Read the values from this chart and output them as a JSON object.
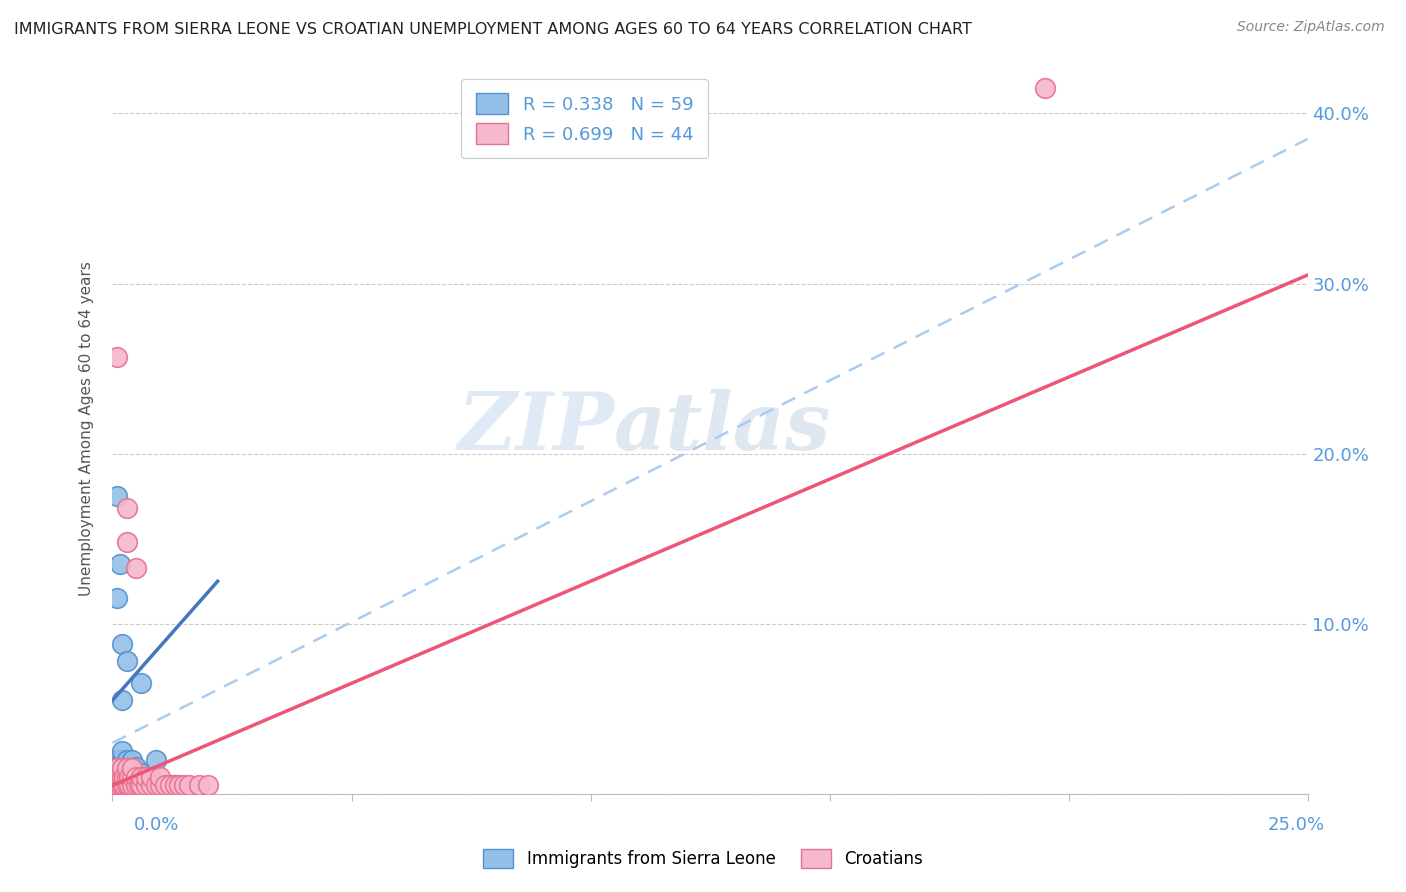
{
  "title": "IMMIGRANTS FROM SIERRA LEONE VS CROATIAN UNEMPLOYMENT AMONG AGES 60 TO 64 YEARS CORRELATION CHART",
  "source": "Source: ZipAtlas.com",
  "ylabel": "Unemployment Among Ages 60 to 64 years",
  "watermark_zip": "ZIP",
  "watermark_atlas": "atlas",
  "blue_color": "#92c0e8",
  "blue_edge_color": "#5590cc",
  "pink_color": "#f5b8cc",
  "pink_edge_color": "#e87090",
  "blue_line_color": "#4477bb",
  "pink_line_color": "#ee5577",
  "dashed_line_color": "#aaccee",
  "title_color": "#222222",
  "source_color": "#888888",
  "axis_label_color": "#5599dd",
  "legend_blue_label": "R = 0.338   N = 59",
  "legend_pink_label": "R = 0.699   N = 44",
  "bottom_legend_blue": "Immigrants from Sierra Leone",
  "bottom_legend_pink": "Croatians",
  "xlim": [
    0.0,
    0.25
  ],
  "ylim": [
    0.0,
    0.43
  ],
  "xtick_positions": [
    0.0,
    0.05,
    0.1,
    0.15,
    0.2,
    0.25
  ],
  "ytick_positions": [
    0.0,
    0.1,
    0.2,
    0.3,
    0.4
  ],
  "ytick_labels": [
    "",
    "10.0%",
    "20.0%",
    "30.0%",
    "40.0%"
  ],
  "blue_line_x": [
    0.0,
    0.022
  ],
  "blue_line_y": [
    0.055,
    0.125
  ],
  "pink_line_x": [
    0.0,
    0.25
  ],
  "pink_line_y": [
    0.005,
    0.305
  ],
  "dashed_line_x": [
    0.0,
    0.25
  ],
  "dashed_line_y": [
    0.03,
    0.385
  ],
  "blue_scatter": [
    [
      0.0005,
      0.005
    ],
    [
      0.001,
      0.007
    ],
    [
      0.001,
      0.01
    ],
    [
      0.001,
      0.013
    ],
    [
      0.001,
      0.016
    ],
    [
      0.001,
      0.02
    ],
    [
      0.0015,
      0.005
    ],
    [
      0.0015,
      0.008
    ],
    [
      0.0015,
      0.012
    ],
    [
      0.002,
      0.005
    ],
    [
      0.002,
      0.008
    ],
    [
      0.002,
      0.012
    ],
    [
      0.002,
      0.016
    ],
    [
      0.002,
      0.02
    ],
    [
      0.002,
      0.025
    ],
    [
      0.002,
      0.055
    ],
    [
      0.0025,
      0.005
    ],
    [
      0.0025,
      0.008
    ],
    [
      0.0025,
      0.012
    ],
    [
      0.0025,
      0.016
    ],
    [
      0.003,
      0.005
    ],
    [
      0.003,
      0.008
    ],
    [
      0.003,
      0.012
    ],
    [
      0.003,
      0.016
    ],
    [
      0.003,
      0.02
    ],
    [
      0.0035,
      0.005
    ],
    [
      0.0035,
      0.008
    ],
    [
      0.0035,
      0.012
    ],
    [
      0.004,
      0.005
    ],
    [
      0.004,
      0.008
    ],
    [
      0.004,
      0.012
    ],
    [
      0.004,
      0.016
    ],
    [
      0.004,
      0.02
    ],
    [
      0.0045,
      0.005
    ],
    [
      0.0045,
      0.008
    ],
    [
      0.005,
      0.005
    ],
    [
      0.005,
      0.008
    ],
    [
      0.005,
      0.012
    ],
    [
      0.005,
      0.016
    ],
    [
      0.0055,
      0.005
    ],
    [
      0.006,
      0.005
    ],
    [
      0.006,
      0.008
    ],
    [
      0.006,
      0.012
    ],
    [
      0.007,
      0.005
    ],
    [
      0.007,
      0.008
    ],
    [
      0.008,
      0.005
    ],
    [
      0.008,
      0.008
    ],
    [
      0.009,
      0.005
    ],
    [
      0.01,
      0.005
    ],
    [
      0.011,
      0.005
    ],
    [
      0.012,
      0.005
    ],
    [
      0.013,
      0.005
    ],
    [
      0.001,
      0.175
    ],
    [
      0.0015,
      0.135
    ],
    [
      0.001,
      0.115
    ],
    [
      0.002,
      0.088
    ],
    [
      0.003,
      0.078
    ],
    [
      0.006,
      0.065
    ],
    [
      0.009,
      0.02
    ]
  ],
  "pink_scatter": [
    [
      0.0005,
      0.005
    ],
    [
      0.001,
      0.005
    ],
    [
      0.001,
      0.01
    ],
    [
      0.001,
      0.015
    ],
    [
      0.0015,
      0.005
    ],
    [
      0.0015,
      0.01
    ],
    [
      0.002,
      0.005
    ],
    [
      0.002,
      0.01
    ],
    [
      0.002,
      0.015
    ],
    [
      0.0025,
      0.005
    ],
    [
      0.0025,
      0.01
    ],
    [
      0.003,
      0.005
    ],
    [
      0.003,
      0.01
    ],
    [
      0.003,
      0.015
    ],
    [
      0.0035,
      0.005
    ],
    [
      0.0035,
      0.01
    ],
    [
      0.004,
      0.005
    ],
    [
      0.004,
      0.01
    ],
    [
      0.004,
      0.015
    ],
    [
      0.005,
      0.005
    ],
    [
      0.005,
      0.01
    ],
    [
      0.0055,
      0.005
    ],
    [
      0.006,
      0.005
    ],
    [
      0.006,
      0.01
    ],
    [
      0.007,
      0.005
    ],
    [
      0.007,
      0.01
    ],
    [
      0.008,
      0.005
    ],
    [
      0.008,
      0.01
    ],
    [
      0.009,
      0.005
    ],
    [
      0.01,
      0.005
    ],
    [
      0.01,
      0.01
    ],
    [
      0.011,
      0.005
    ],
    [
      0.012,
      0.005
    ],
    [
      0.013,
      0.005
    ],
    [
      0.014,
      0.005
    ],
    [
      0.015,
      0.005
    ],
    [
      0.016,
      0.005
    ],
    [
      0.018,
      0.005
    ],
    [
      0.02,
      0.005
    ],
    [
      0.001,
      0.257
    ],
    [
      0.003,
      0.168
    ],
    [
      0.003,
      0.148
    ],
    [
      0.005,
      0.133
    ],
    [
      0.195,
      0.415
    ]
  ]
}
